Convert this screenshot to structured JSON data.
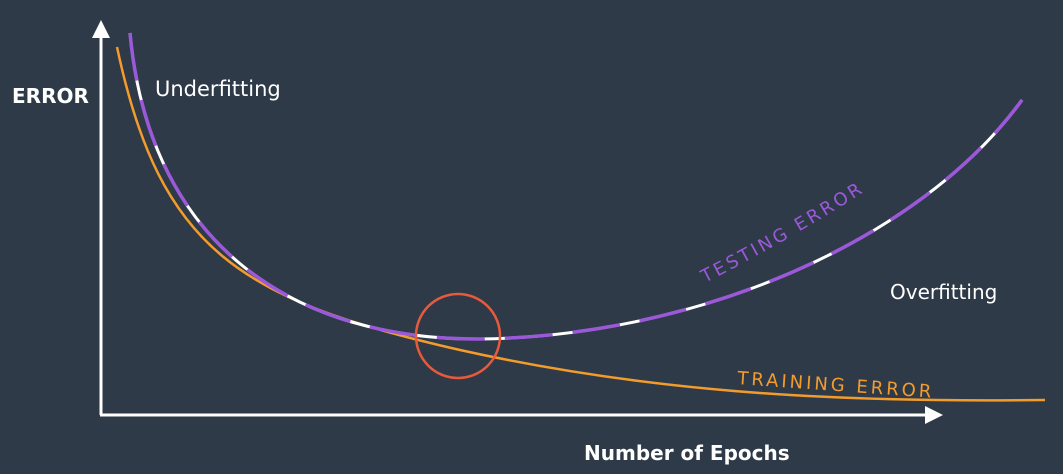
{
  "axes": {
    "y_label": "ERROR",
    "x_label": "Number of Epochs"
  },
  "annotations": {
    "underfitting": "Underfitting",
    "overfitting": "Overfitting",
    "testing_error": "TESTING ERROR",
    "training_error": "TRAINING ERROR"
  },
  "colors": {
    "background": "#2e3a48",
    "axis": "#ffffff",
    "training": "#f39c2c",
    "testing_dash": "#9b59d9",
    "testing_gap": "#ffffff",
    "optimum_circle": "#e85a3c"
  }
}
